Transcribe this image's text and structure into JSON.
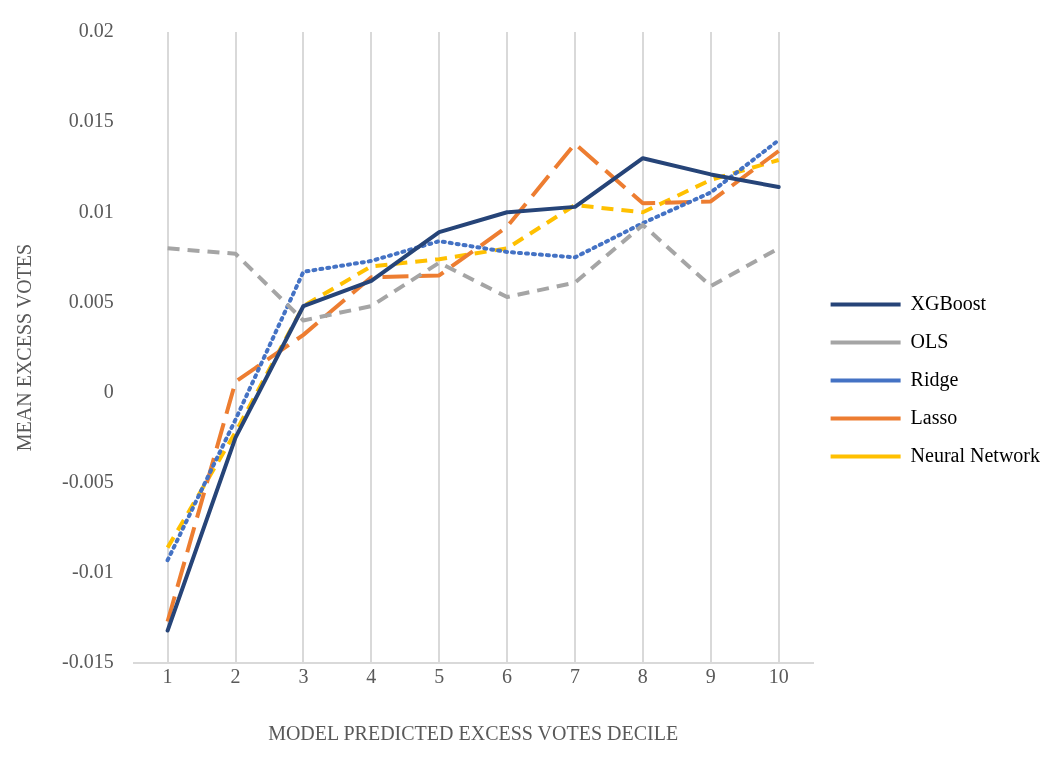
{
  "chart_data": {
    "type": "line",
    "xlabel": "MODEL PREDICTED EXCESS VOTES DECILE",
    "ylabel": "MEAN EXCESS VOTES",
    "categories": [
      "1",
      "2",
      "3",
      "4",
      "5",
      "6",
      "7",
      "8",
      "9",
      "10"
    ],
    "ylim": [
      -0.015,
      0.02
    ],
    "yticks": [
      -0.015,
      -0.01,
      -0.005,
      0,
      0.005,
      0.01,
      0.015,
      0.02
    ],
    "grid": "x",
    "legend": "right",
    "marker": "none",
    "series": [
      {
        "name": "XGBoost",
        "color": "#264478",
        "line_style": "solid",
        "values": [
          -0.0132,
          -0.0025,
          0.0048,
          0.0062,
          0.0089,
          0.01,
          0.0103,
          0.013,
          0.0121,
          0.0114
        ]
      },
      {
        "name": "OLS",
        "color": "#a5a5a5",
        "line_style": "dashed",
        "values": [
          0.008,
          0.0077,
          0.004,
          0.0048,
          0.0072,
          0.0053,
          0.0061,
          0.0093,
          0.0059,
          0.008
        ]
      },
      {
        "name": "Ridge",
        "color": "#4472c4",
        "line_style": "dotted",
        "values": [
          -0.0093,
          -0.0015,
          0.0067,
          0.0073,
          0.0084,
          0.0078,
          0.0075,
          0.0094,
          0.0111,
          0.014
        ]
      },
      {
        "name": "Lasso",
        "color": "#ed7d31",
        "line_style": "longdash",
        "values": [
          -0.0127,
          0.0006,
          0.0032,
          0.0064,
          0.0065,
          0.0092,
          0.0138,
          0.0105,
          0.0106,
          0.0134
        ]
      },
      {
        "name": "Neural Network",
        "color": "#ffc000",
        "line_style": "dashed",
        "values": [
          -0.0086,
          -0.0022,
          0.0048,
          0.007,
          0.0074,
          0.008,
          0.0104,
          0.01,
          0.0118,
          0.0129
        ]
      }
    ]
  }
}
